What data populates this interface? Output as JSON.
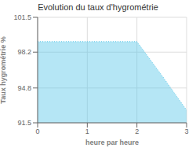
{
  "chart_data": {
    "type": "area",
    "title": "Evolution du taux d'hygrométrie",
    "xlabel": "heure par heure",
    "ylabel": "Taux hygrométrie %",
    "x": [
      0,
      0.5,
      1,
      1.5,
      2,
      2.5,
      3
    ],
    "values": [
      99.2,
      99.2,
      99.2,
      99.2,
      99.2,
      96.0,
      92.7
    ],
    "color": "#5bc8e8",
    "line_style": "dotted",
    "xlim": [
      0,
      3
    ],
    "ylim": [
      91.5,
      101.5
    ],
    "xticks": [
      0,
      1,
      2,
      3
    ],
    "yticks": [
      91.5,
      94.8,
      98.2,
      101.5
    ],
    "grid": true
  }
}
